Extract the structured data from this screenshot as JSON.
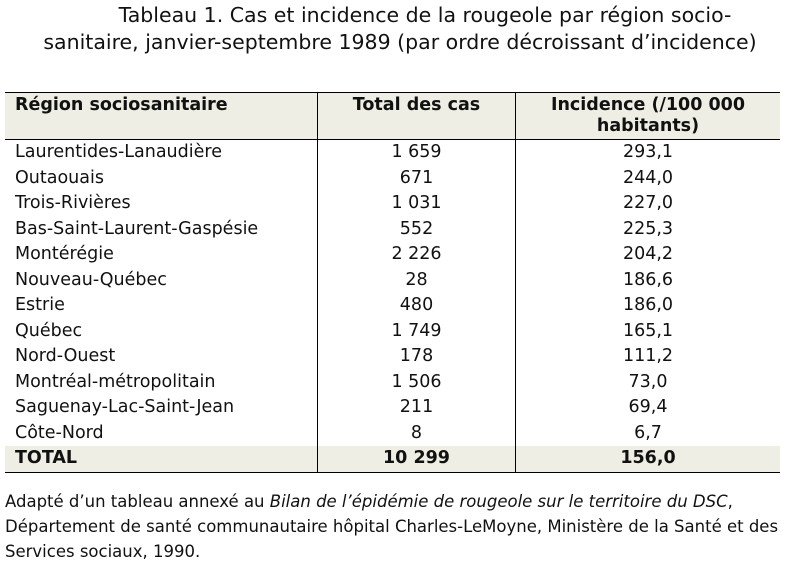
{
  "title_lines": [
    "Tableau 1. Cas et incidence de la rougeole par région socio-",
    "sanitaire, janvier-septembre 1989 (par ordre décroissant d’incidence)"
  ],
  "table": {
    "header": [
      "Région sociosanitaire",
      "Total des cas",
      "Incidence (/100 000 habitants)"
    ],
    "rows": [
      [
        "Laurentides-Lanaudière",
        "1 659",
        "293,1"
      ],
      [
        "Outaouais",
        "671",
        "244,0"
      ],
      [
        "Trois-Rivières",
        "1 031",
        "227,0"
      ],
      [
        "Bas-Saint-Laurent-Gaspésie",
        "552",
        "225,3"
      ],
      [
        "Montérégie",
        "2 226",
        "204,2"
      ],
      [
        "Nouveau-Québec",
        "28",
        "186,6"
      ],
      [
        "Estrie",
        "480",
        "186,0"
      ],
      [
        "Québec",
        "1 749",
        "165,1"
      ],
      [
        "Nord-Ouest",
        "178",
        "111,2"
      ],
      [
        "Montréal-métropolitain",
        "1 506",
        "73,0"
      ],
      [
        "Saguenay-Lac-Saint-Jean",
        "211",
        "69,4"
      ],
      [
        "Côte-Nord",
        "8",
        "6,7"
      ]
    ],
    "total": [
      "TOTAL",
      "10 299",
      "156,0"
    ]
  },
  "footnote": {
    "before": "Adapté d’un tableau annexé au ",
    "italic": "Bilan de l’épidémie de rougeole sur le territoire du DSC",
    "after": ", Département de santé communautaire hôpital Charles-LeMoyne, Ministère de la Santé et des Services sociaux, 1990."
  }
}
